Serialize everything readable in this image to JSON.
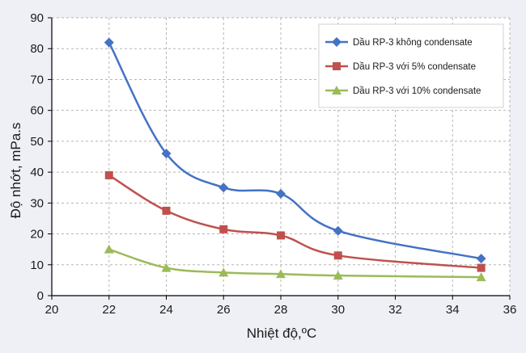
{
  "chart_data": {
    "type": "line",
    "title": "",
    "xlabel": "Nhiệt độ,ºC",
    "ylabel": "Độ nhớt,  mPa.s",
    "xlim": [
      20,
      36
    ],
    "ylim": [
      0,
      90
    ],
    "x_ticks": [
      20,
      22,
      24,
      26,
      28,
      30,
      32,
      34,
      36
    ],
    "y_ticks": [
      0,
      10,
      20,
      30,
      40,
      50,
      60,
      70,
      80,
      90
    ],
    "grid": "dashed",
    "legend_position": "top-right",
    "x": [
      22,
      24,
      26,
      28,
      30,
      35
    ],
    "series": [
      {
        "name": "Dầu RP-3 không condensate",
        "color": "#4472c4",
        "marker": "diamond",
        "values": [
          82,
          46,
          35,
          33,
          21,
          12
        ]
      },
      {
        "name": "Dầu RP-3 với 5% condensate",
        "color": "#c0504d",
        "marker": "square",
        "values": [
          39,
          27.5,
          21.5,
          19.5,
          13,
          9
        ]
      },
      {
        "name": "Dầu RP-3 với 10% condensate",
        "color": "#9bbb59",
        "marker": "triangle",
        "values": [
          15,
          9,
          7.5,
          7,
          6.5,
          6
        ]
      }
    ]
  }
}
